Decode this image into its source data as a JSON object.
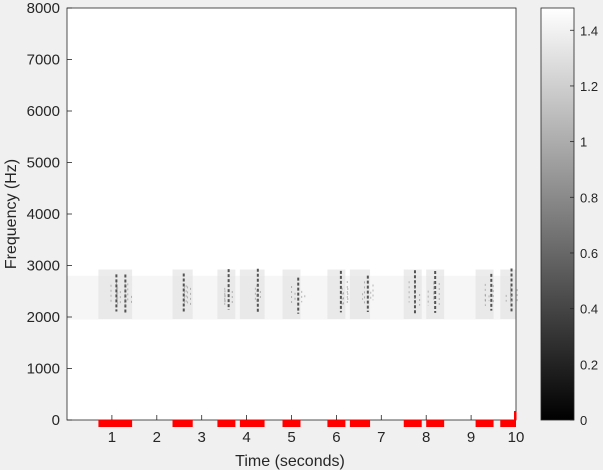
{
  "chart_data": {
    "type": "heatmap",
    "colormap": "gray",
    "xlabel": "Time (seconds)",
    "ylabel": "Frequency (Hz)",
    "xlim": [
      0,
      10
    ],
    "ylim": [
      0,
      8000
    ],
    "xticks": [
      1,
      2,
      3,
      4,
      5,
      6,
      7,
      8,
      9,
      10
    ],
    "yticks": [
      0,
      1000,
      2000,
      3000,
      4000,
      5000,
      6000,
      7000,
      8000
    ],
    "colorbar": {
      "limits": [
        0,
        1.48
      ],
      "ticks": [
        0,
        0.2,
        0.4,
        0.6,
        0.8,
        1,
        1.2,
        1.4
      ]
    },
    "band": {
      "freq_range": [
        2000,
        3000
      ]
    },
    "segments": [
      [
        0.7,
        1.45
      ],
      [
        2.35,
        2.8
      ],
      [
        3.35,
        3.75
      ],
      [
        3.85,
        4.4
      ],
      [
        4.8,
        5.2
      ],
      [
        5.8,
        6.2
      ],
      [
        6.3,
        6.75
      ],
      [
        7.5,
        7.9
      ],
      [
        8.0,
        8.4
      ],
      [
        9.1,
        9.5
      ],
      [
        9.65,
        10.0
      ]
    ],
    "event_lines": [
      1.1,
      1.3,
      2.6,
      3.6,
      4.25,
      5.15,
      6.1,
      6.7,
      7.75,
      8.2,
      9.45,
      9.9
    ],
    "marker_color": "#ff0000",
    "grid": false
  }
}
